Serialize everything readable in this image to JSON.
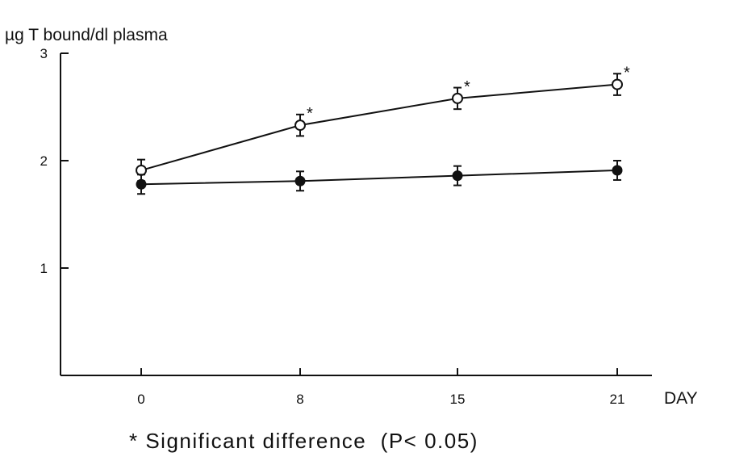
{
  "chart_data": {
    "type": "line",
    "title": "",
    "ylabel": "µg T bound/dl plasma",
    "xlabel": "DAY",
    "categories": [
      "0",
      "8",
      "15",
      "21"
    ],
    "y_ticks": [
      "1",
      "2",
      "3"
    ],
    "ylim": [
      0,
      3
    ],
    "series": [
      {
        "name": "open-circle",
        "marker": "open",
        "values": [
          1.91,
          2.33,
          2.58,
          2.71
        ],
        "errors": [
          0.1,
          0.1,
          0.1,
          0.1
        ],
        "significant": [
          false,
          true,
          true,
          true
        ]
      },
      {
        "name": "filled-circle",
        "marker": "filled",
        "values": [
          1.78,
          1.81,
          1.86,
          1.91
        ],
        "errors": [
          0.09,
          0.09,
          0.09,
          0.09
        ],
        "significant": [
          false,
          false,
          false,
          false
        ]
      }
    ],
    "significance_marker": "*",
    "footnote": "* Significant difference  (P< 0.05)"
  }
}
